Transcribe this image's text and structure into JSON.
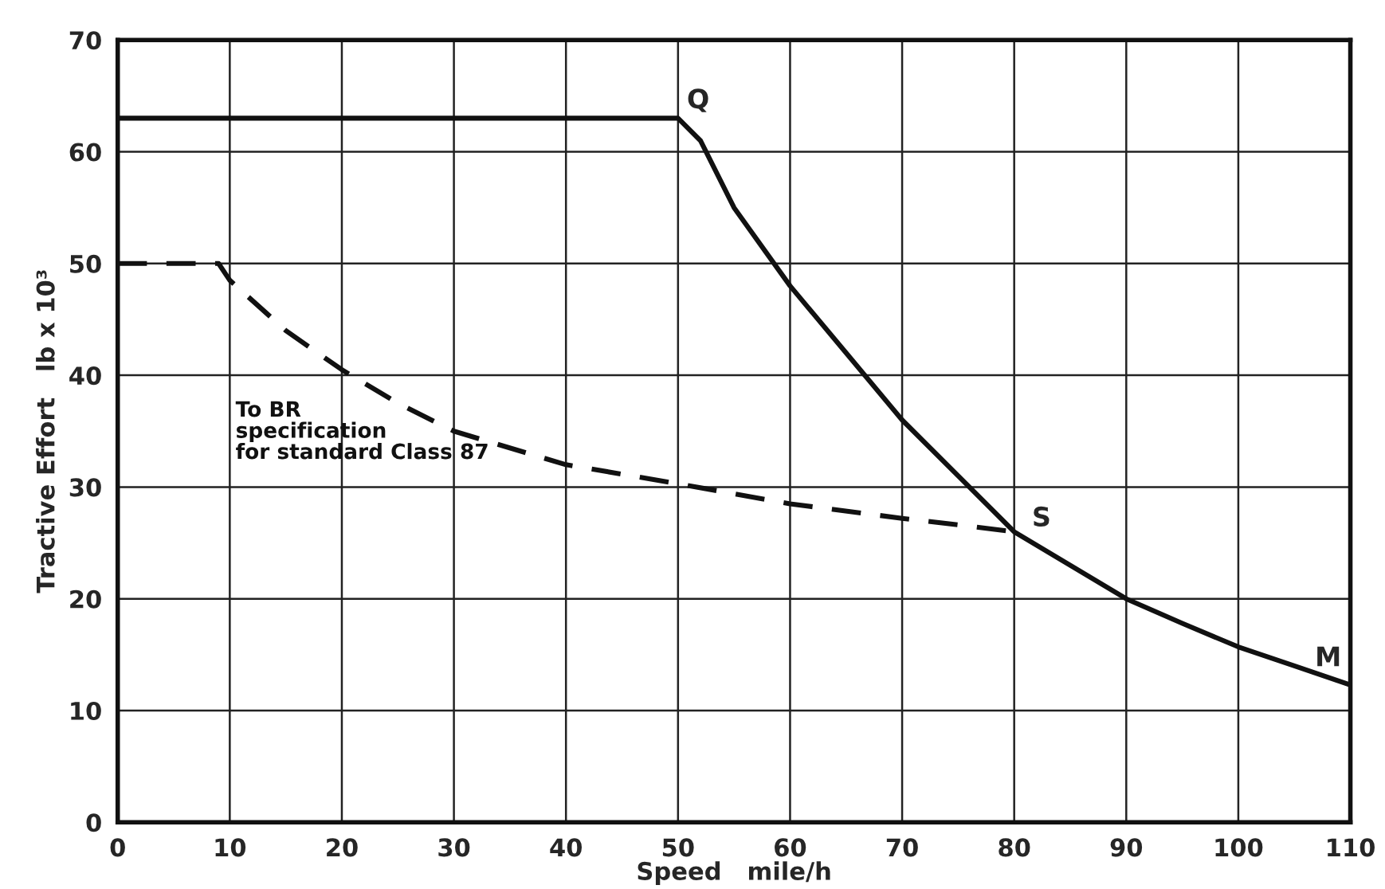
{
  "chart_data": {
    "type": "line",
    "xlabel": "Speed   mile/h",
    "ylabel": "Tractive Effort   lb x 10³",
    "xlim": [
      0,
      110
    ],
    "xticks": [
      0,
      10,
      20,
      30,
      40,
      50,
      60,
      70,
      80,
      90,
      100,
      110
    ],
    "ylim": [
      0,
      70
    ],
    "yticks": [
      0,
      10,
      20,
      30,
      40,
      50,
      60,
      70
    ],
    "grid": true,
    "legend": false,
    "series": [
      {
        "color": "#111111",
        "line_style": "solid",
        "x": [
          0,
          50,
          52,
          55,
          60,
          65,
          70,
          75,
          80,
          85,
          90,
          95,
          100,
          105,
          110
        ],
        "values": [
          63,
          63,
          61,
          55,
          48,
          42,
          36,
          31,
          26,
          23,
          20,
          17.8,
          15.7,
          14,
          12.3
        ]
      },
      {
        "name": "To BR\nspecification\nfor standard Class 87",
        "color": "#111111",
        "line_style": "dashed",
        "x": [
          0,
          9,
          10,
          15,
          20,
          25,
          30,
          40,
          50,
          60,
          70,
          76,
          80
        ],
        "values": [
          50,
          50,
          48.5,
          44,
          40.5,
          37.5,
          35,
          32,
          30.3,
          28.5,
          27.2,
          26.5,
          26
        ]
      }
    ],
    "annotations": [
      {
        "text": "Q",
        "x": 50,
        "y": 63
      },
      {
        "text": "S",
        "x": 80,
        "y": 26
      },
      {
        "text": "M",
        "x": 110,
        "y": 12.3
      }
    ]
  }
}
